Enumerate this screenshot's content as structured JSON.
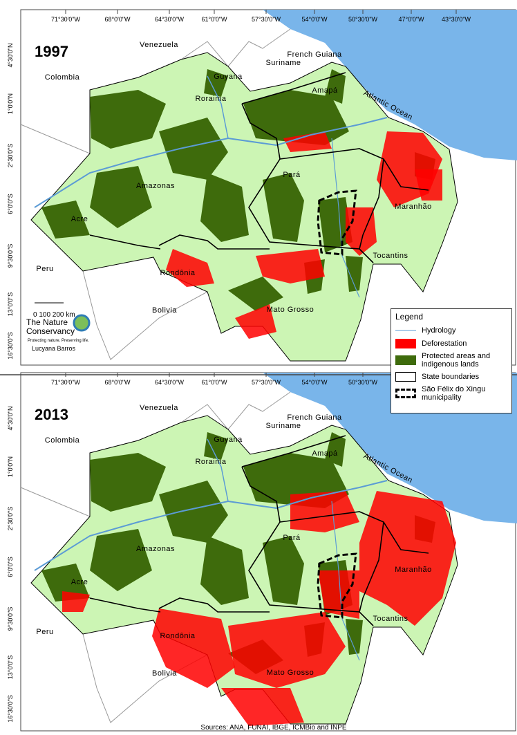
{
  "panels": [
    {
      "year": "1997",
      "longitude_labels": [
        "71°30'0\"W",
        "68°0'0\"W",
        "64°30'0\"W",
        "61°0'0\"W",
        "57°30'0\"W",
        "54°0'0\"W",
        "50°30'0\"W",
        "47°0'0\"W",
        "43°30'0\"W"
      ],
      "latitude_labels": [
        "4°30'0\"N",
        "1°0'0\"N",
        "2°30'0\"S",
        "6°0'0\"S",
        "9°30'0\"S",
        "13°0'0\"S",
        "16°30'0\"S"
      ],
      "places": [
        "Venezuela",
        "Colombia",
        "Guyana",
        "Suriname",
        "French Guiana",
        "Roraima",
        "Amapá",
        "Atlantic Ocean",
        "Pará",
        "Amazonas",
        "Maranhão",
        "Acre",
        "Peru",
        "Rondônia",
        "Bolivia",
        "Tocantins",
        "Mato Grosso"
      ]
    },
    {
      "year": "2013",
      "longitude_labels": [
        "71°30'0\"W",
        "68°0'0\"W",
        "64°30'0\"W",
        "61°0'0\"W",
        "57°30'0\"W",
        "54°0'0\"W",
        "50°30'0\"W"
      ],
      "latitude_labels": [
        "4°30'0\"N",
        "1°0'0\"N",
        "2°30'0\"S",
        "6°0'0\"S",
        "9°30'0\"S",
        "13°0'0\"S",
        "16°30'0\"S"
      ],
      "places": [
        "Venezuela",
        "Colombia",
        "Guyana",
        "Suriname",
        "French Guiana",
        "Roraima",
        "Amapá",
        "Atlantic Ocean",
        "Pará",
        "Amazonas",
        "Maranhão",
        "Acre",
        "Peru",
        "Rondônia",
        "Bolivia",
        "Tocantins",
        "Mato Grosso"
      ]
    }
  ],
  "scale": {
    "label": "0   100 200 km"
  },
  "logo": {
    "line1": "The Nature",
    "line2": "Conservancy",
    "tagline": "Protecting nature. Preserving life."
  },
  "credit": "Lucyana Barros",
  "legend": {
    "title": "Legend",
    "items": [
      "Hydrology",
      "Deforestation",
      "Protected areas and indigenous lands",
      "State boundaries",
      "São Félix do Xingu municipality"
    ]
  },
  "sources": "Sources: ANA, FUNAI, IBGE, ICMBio and INPE"
}
